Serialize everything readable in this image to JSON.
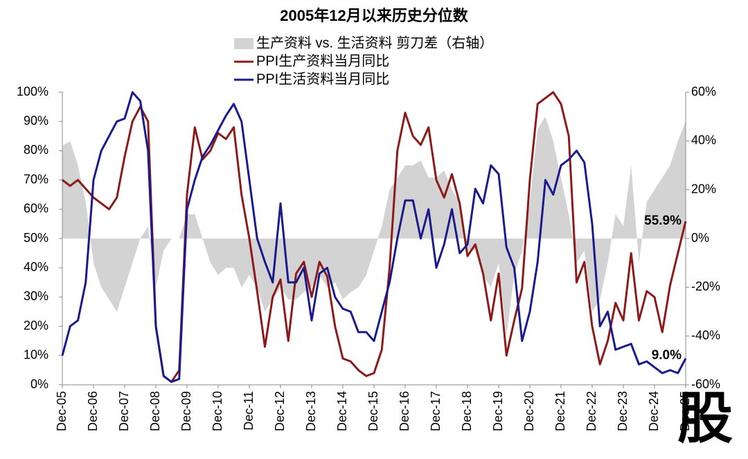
{
  "chart_data": {
    "type": "line-area",
    "title": "2005年12月以来历史分位数",
    "watermark": "股",
    "x": [
      2005.92,
      2006.17,
      2006.42,
      2006.67,
      2006.92,
      2007.17,
      2007.42,
      2007.67,
      2007.92,
      2008.17,
      2008.42,
      2008.67,
      2008.92,
      2009.17,
      2009.42,
      2009.67,
      2009.92,
      2010.17,
      2010.42,
      2010.67,
      2010.92,
      2011.17,
      2011.42,
      2011.67,
      2011.92,
      2012.17,
      2012.42,
      2012.67,
      2012.92,
      2013.17,
      2013.42,
      2013.67,
      2013.92,
      2014.17,
      2014.42,
      2014.67,
      2014.92,
      2015.17,
      2015.42,
      2015.67,
      2015.92,
      2016.17,
      2016.42,
      2016.67,
      2016.92,
      2017.17,
      2017.42,
      2017.67,
      2017.92,
      2018.17,
      2018.42,
      2018.67,
      2018.92,
      2019.17,
      2019.42,
      2019.67,
      2019.92,
      2020.17,
      2020.42,
      2020.67,
      2020.92,
      2021.17,
      2021.42,
      2021.67,
      2021.92,
      2022.17,
      2022.42,
      2022.67,
      2022.92,
      2023.17,
      2023.42,
      2023.67,
      2023.92,
      2024.17,
      2024.42,
      2024.67,
      2024.92,
      2025.17,
      2025.42,
      2025.67,
      2025.92
    ],
    "xlim": [
      2005.92,
      2025.92
    ],
    "xticks": [
      {
        "value": 2005.92,
        "label": "Dec-05"
      },
      {
        "value": 2006.92,
        "label": "Dec-06"
      },
      {
        "value": 2007.92,
        "label": "Dec-07"
      },
      {
        "value": 2008.92,
        "label": "Dec-08"
      },
      {
        "value": 2009.92,
        "label": "Dec-09"
      },
      {
        "value": 2010.92,
        "label": "Dec-10"
      },
      {
        "value": 2011.92,
        "label": "Dec-11"
      },
      {
        "value": 2012.92,
        "label": "Dec-12"
      },
      {
        "value": 2013.92,
        "label": "Dec-13"
      },
      {
        "value": 2014.92,
        "label": "Dec-14"
      },
      {
        "value": 2015.92,
        "label": "Dec-15"
      },
      {
        "value": 2016.92,
        "label": "Dec-16"
      },
      {
        "value": 2017.92,
        "label": "Dec-17"
      },
      {
        "value": 2018.92,
        "label": "Dec-18"
      },
      {
        "value": 2019.92,
        "label": "Dec-19"
      },
      {
        "value": 2020.92,
        "label": "Dec-20"
      },
      {
        "value": 2021.92,
        "label": "Dec-21"
      },
      {
        "value": 2022.92,
        "label": "Dec-22"
      },
      {
        "value": 2023.92,
        "label": "Dec-23"
      },
      {
        "value": 2024.92,
        "label": "Dec-24"
      },
      {
        "value": 2025.92,
        "label": "Dec-25"
      }
    ],
    "ylim": [
      0,
      100
    ],
    "yticks": [
      {
        "value": 0,
        "label": "0%"
      },
      {
        "value": 10,
        "label": "10%"
      },
      {
        "value": 20,
        "label": "20%"
      },
      {
        "value": 30,
        "label": "30%"
      },
      {
        "value": 40,
        "label": "40%"
      },
      {
        "value": 50,
        "label": "50%"
      },
      {
        "value": 60,
        "label": "60%"
      },
      {
        "value": 70,
        "label": "70%"
      },
      {
        "value": 80,
        "label": "80%"
      },
      {
        "value": 90,
        "label": "90%"
      },
      {
        "value": 100,
        "label": "100%"
      }
    ],
    "y2lim": [
      -60,
      60
    ],
    "y2ticks": [
      {
        "value": -60,
        "label": "-60%"
      },
      {
        "value": -40,
        "label": "-40%"
      },
      {
        "value": -20,
        "label": "-20%"
      },
      {
        "value": 0,
        "label": "0%"
      },
      {
        "value": 20,
        "label": "20%"
      },
      {
        "value": 40,
        "label": "40%"
      },
      {
        "value": 60,
        "label": "60%"
      }
    ],
    "series": [
      {
        "name": "生产资料 vs. 生活资料 剪刀差（右轴）",
        "kind": "area",
        "axis": "y2",
        "color": "#d3d3d3",
        "values": [
          38,
          40,
          30,
          15,
          -10,
          -20,
          -25,
          -30,
          -20,
          -10,
          0,
          5,
          -20,
          -5,
          0,
          0,
          10,
          10,
          0,
          -10,
          -15,
          -12,
          -12,
          -20,
          -15,
          -20,
          -30,
          -25,
          -20,
          -25,
          -25,
          -22,
          -20,
          -15,
          -20,
          -18,
          -25,
          -22,
          -20,
          -15,
          -5,
          5,
          20,
          25,
          30,
          30,
          32,
          25,
          25,
          28,
          20,
          15,
          -5,
          -5,
          -15,
          -20,
          -10,
          -40,
          -15,
          -5,
          15,
          45,
          50,
          40,
          25,
          10,
          -10,
          -5,
          -30,
          -25,
          -10,
          10,
          5,
          30,
          -10,
          15,
          20,
          25,
          30,
          40,
          48
        ]
      },
      {
        "name": "PPI生产资料当月同比",
        "kind": "line",
        "color": "#8b1a1a",
        "values": [
          70,
          68,
          70,
          67,
          64,
          62,
          60,
          64,
          78,
          90,
          95,
          90,
          20,
          3,
          1,
          5,
          65,
          88,
          77,
          80,
          86,
          84,
          88,
          65,
          50,
          32,
          13,
          30,
          36,
          15,
          38,
          42,
          30,
          42,
          37,
          20,
          9,
          8,
          5,
          3,
          4,
          12,
          40,
          80,
          93,
          85,
          82,
          88,
          70,
          64,
          72,
          62,
          44,
          48,
          38,
          22,
          38,
          10,
          22,
          33,
          70,
          96,
          98,
          100,
          96,
          85,
          35,
          42,
          20,
          7,
          15,
          28,
          22,
          45,
          22,
          32,
          30,
          18,
          34,
          45,
          55.9
        ],
        "value_labels": [
          null,
          null,
          null,
          null,
          null,
          null,
          null,
          null,
          null,
          null,
          null,
          null,
          null,
          null,
          null,
          null,
          null,
          null,
          null,
          null,
          null,
          null,
          null,
          null,
          null,
          null,
          null,
          null,
          null,
          null,
          null,
          null,
          null,
          null,
          null,
          null,
          null,
          null,
          null,
          null,
          null,
          null,
          null,
          null,
          null,
          null,
          null,
          null,
          null,
          null,
          null,
          null,
          null,
          null,
          null,
          null,
          null,
          null,
          null,
          null,
          null,
          null,
          null,
          null,
          null,
          null,
          null,
          null,
          null,
          null,
          null,
          null,
          null,
          null,
          null,
          null,
          null,
          null,
          null,
          null,
          "55.9%"
        ]
      },
      {
        "name": "PPI生活资料当月同比",
        "kind": "line",
        "color": "#1a1a8c",
        "values": [
          10,
          20,
          22,
          35,
          70,
          80,
          85,
          90,
          91,
          100,
          97,
          80,
          20,
          3,
          1,
          2,
          60,
          70,
          78,
          82,
          87,
          92,
          96,
          90,
          70,
          50,
          42,
          35,
          62,
          35,
          35,
          40,
          22,
          38,
          40,
          30,
          26,
          25,
          18,
          18,
          15,
          25,
          35,
          50,
          63,
          63,
          50,
          60,
          40,
          48,
          60,
          45,
          48,
          67,
          62,
          75,
          72,
          47,
          40,
          15,
          25,
          42,
          70,
          65,
          75,
          77,
          80,
          76,
          55,
          20,
          25,
          12,
          13,
          14,
          7,
          8,
          6,
          4,
          5,
          4,
          9.0
        ],
        "value_labels": [
          null,
          null,
          null,
          null,
          null,
          null,
          null,
          null,
          null,
          null,
          null,
          null,
          null,
          null,
          null,
          null,
          null,
          null,
          null,
          null,
          null,
          null,
          null,
          null,
          null,
          null,
          null,
          null,
          null,
          null,
          null,
          null,
          null,
          null,
          null,
          null,
          null,
          null,
          null,
          null,
          null,
          null,
          null,
          null,
          null,
          null,
          null,
          null,
          null,
          null,
          null,
          null,
          null,
          null,
          null,
          null,
          null,
          null,
          null,
          null,
          null,
          null,
          null,
          null,
          null,
          null,
          null,
          null,
          null,
          null,
          null,
          null,
          null,
          null,
          null,
          null,
          null,
          null,
          null,
          null,
          "9.0%"
        ]
      }
    ]
  }
}
